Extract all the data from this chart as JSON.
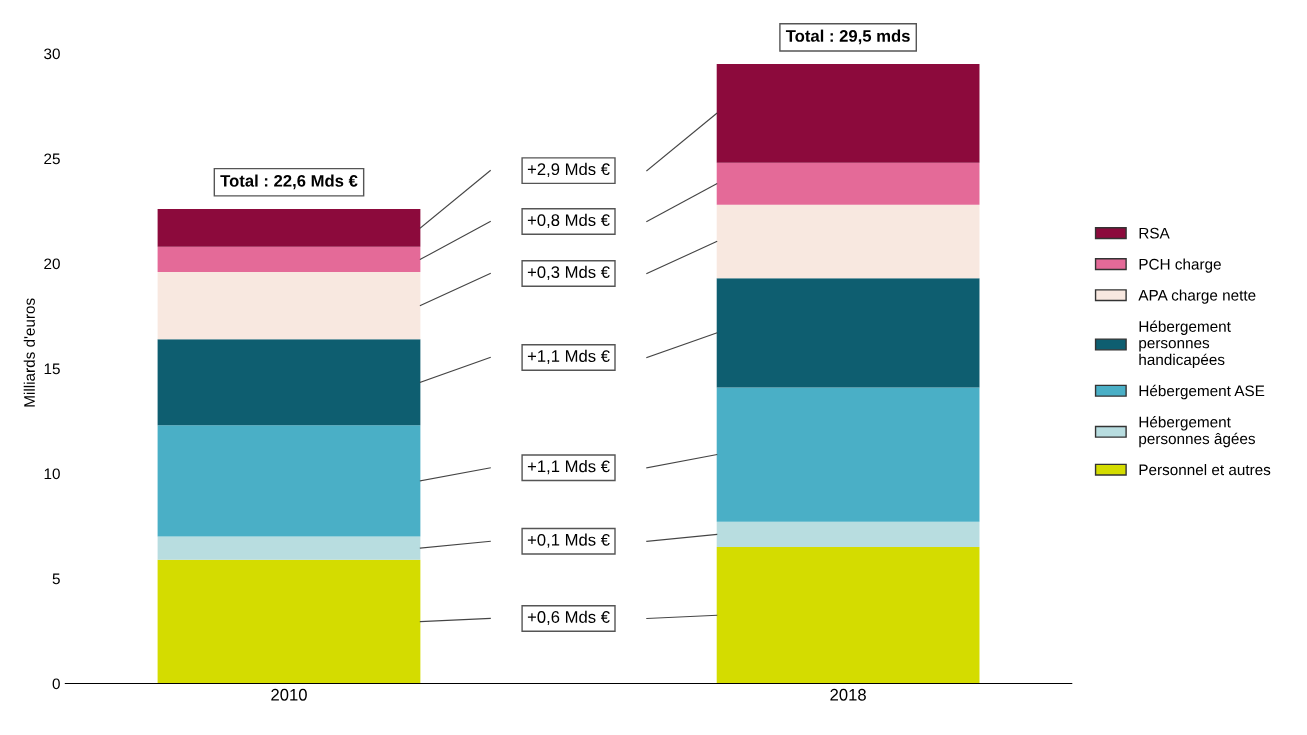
{
  "chart_data": {
    "type": "bar",
    "stacked": true,
    "ylabel": "Milliards d'euros",
    "categories": [
      "2010",
      "2018"
    ],
    "series": [
      {
        "name": "Personnel et autres",
        "color": "#d4dc00",
        "values": [
          5.9,
          6.5
        ]
      },
      {
        "name": "Hébergement\npersonnes âgées",
        "color": "#b8dde0",
        "values": [
          1.1,
          1.2
        ]
      },
      {
        "name": "Hébergement ASE",
        "color": "#4aafc6",
        "values": [
          5.3,
          6.4
        ]
      },
      {
        "name": "Hébergement\npersonnes\nhandicapées",
        "color": "#0e5e70",
        "values": [
          4.1,
          5.2
        ]
      },
      {
        "name": "APA charge nette",
        "color": "#f8e8e0",
        "values": [
          3.2,
          3.5
        ]
      },
      {
        "name": "PCH charge",
        "color": "#e46a98",
        "values": [
          1.2,
          2.0
        ]
      },
      {
        "name": "RSA",
        "color": "#8c0a3c",
        "values": [
          1.8,
          4.7
        ]
      }
    ],
    "totals": [
      "Total : 22,6 Mds €",
      "Total : 29,5 mds"
    ],
    "annotations": [
      "+0,6 Mds €",
      "+0,1 Mds €",
      "+1,1 Mds €",
      "+1,1 Mds €",
      "+0,3 Mds €",
      "+0,8 Mds €",
      "+2,9 Mds €"
    ],
    "ylim": [
      0,
      31.5
    ],
    "yticks": [
      0,
      5,
      10,
      15,
      20,
      25,
      30
    ],
    "legend": "right",
    "grid": false
  }
}
